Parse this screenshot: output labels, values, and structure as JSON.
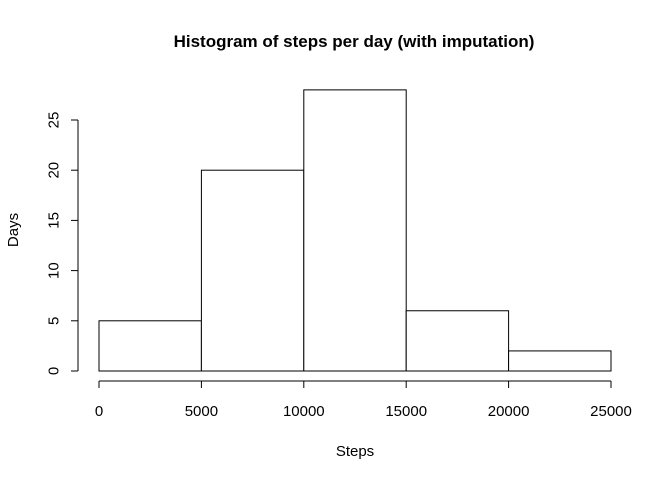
{
  "chart_data": {
    "type": "bar",
    "title": "Histogram of steps per day (with imputation)",
    "xlabel": "Steps",
    "ylabel": "Days",
    "bins": [
      {
        "start": 0,
        "end": 5000,
        "count": 5
      },
      {
        "start": 5000,
        "end": 10000,
        "count": 20
      },
      {
        "start": 10000,
        "end": 15000,
        "count": 28
      },
      {
        "start": 15000,
        "end": 20000,
        "count": 6
      },
      {
        "start": 20000,
        "end": 25000,
        "count": 2
      }
    ],
    "xlim": [
      0,
      25000
    ],
    "ylim": [
      0,
      28
    ],
    "x_ticks": [
      0,
      5000,
      10000,
      15000,
      20000,
      25000
    ],
    "x_tick_labels": [
      "0",
      "5000",
      "10000",
      "15000",
      "20000",
      "25000"
    ],
    "y_ticks": [
      0,
      5,
      10,
      15,
      20,
      25
    ],
    "y_tick_labels": [
      "0",
      "5",
      "10",
      "15",
      "20",
      "25"
    ],
    "grid": false,
    "colors": {
      "bar_fill": "#ffffff",
      "bar_stroke": "#000000",
      "axis": "#000000",
      "text": "#000000",
      "background": "#ffffff"
    }
  }
}
